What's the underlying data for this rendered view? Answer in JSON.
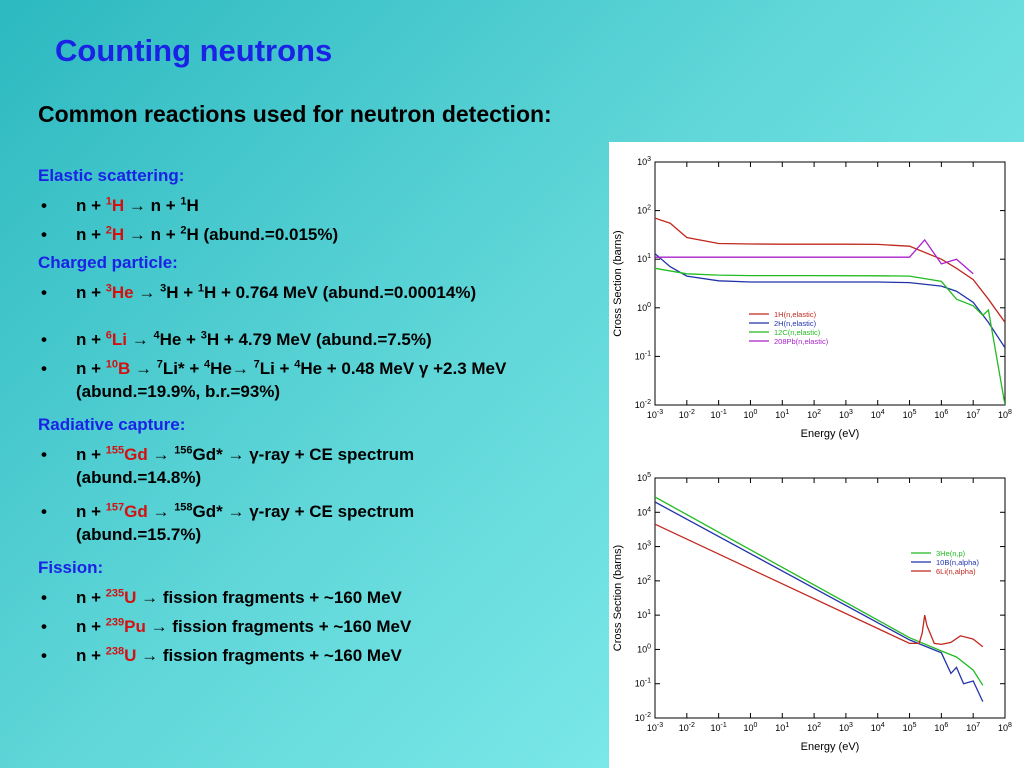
{
  "slide": {
    "title": "Counting neutrons",
    "subtitle": "Common reactions used for neutron detection:"
  },
  "sections": [
    {
      "heading": "Elastic scattering:",
      "items": [
        {
          "pre": "n + ",
          "sup": "1",
          "iso": "H",
          "post": " → n + ",
          "sup2": "1",
          "rest": "H"
        },
        {
          "pre": "n + ",
          "sup": "2",
          "iso": "H",
          "post": " → n + ",
          "sup2": "2",
          "rest": "H (abund.=0.015%)"
        }
      ]
    },
    {
      "heading": "Charged particle:",
      "items": [
        {
          "pre": "n + ",
          "sup": "3",
          "iso": "He",
          "post": " →  ",
          "sup2": "3",
          "rest": "H + ",
          "sup3": "1",
          "rest2": "H + 0.764 MeV (abund.=0.00014%)"
        },
        {
          "pre": "n +  ",
          "sup": "6",
          "iso": "Li",
          "post": "  → ",
          "sup2": "4",
          "rest": "He + ",
          "sup3": "3",
          "rest2": "H + 4.79 MeV (abund.=7.5%)"
        },
        {
          "pre": "n +  ",
          "sup": "10",
          "iso": "B",
          "post": " →  ",
          "sup2": "7",
          "rest": "Li* + ",
          "sup3": "4",
          "rest2": "He→ ",
          "sup4": "7",
          "rest3": "Li + ",
          "sup5": "4",
          "rest4": "He + 0.48 MeV γ +2.3 MeV",
          "line2": "(abund.=19.9%, b.r.=93%)"
        }
      ]
    },
    {
      "heading": "Radiative capture:",
      "items": [
        {
          "pre": "n + ",
          "sup": "155",
          "iso": "Gd",
          "post": " → ",
          "sup2": "156",
          "rest": "Gd* → γ-ray + CE spectrum",
          "line2": "(abund.=14.8%)"
        },
        {
          "pre": "n + ",
          "sup": "157",
          "iso": "Gd",
          "post": " → ",
          "sup2": "158",
          "rest": "Gd* → γ-ray + CE spectrum",
          "line2": "(abund.=15.7%)"
        }
      ]
    },
    {
      "heading": "Fission:",
      "items": [
        {
          "pre": "n + ",
          "sup": "235",
          "iso": "U",
          "post": " → fission fragments + ~160 MeV"
        },
        {
          "pre": "n + ",
          "sup": "239",
          "iso": "Pu",
          "post": " → fission fragments + ~160 MeV"
        },
        {
          "pre": "n + ",
          "sup": "238",
          "iso": "U",
          "post": " → fission fragments + ~160 MeV"
        }
      ]
    }
  ],
  "bullet": "•",
  "colors": {
    "title": "#1a22e6",
    "isotope": "#d41010",
    "section": "#1a22e6"
  },
  "chart_data": [
    {
      "type": "line",
      "xlabel": "Energy (eV)",
      "ylabel": "Cross Section (barns)",
      "xscale": "log",
      "yscale": "log",
      "xlim": [
        0.001,
        100000000
      ],
      "ylim": [
        0.01,
        1000
      ],
      "xticks": [
        "10-3",
        "10-2",
        "10-1",
        "100",
        "101",
        "102",
        "103",
        "104",
        "105",
        "106",
        "107",
        "108"
      ],
      "yticks": [
        "10-2",
        "10-1",
        "100",
        "101",
        "102",
        "103"
      ],
      "legend_position": "center-right",
      "series": [
        {
          "name": "1H(n,elastic)",
          "color": "#c0281e",
          "x": [
            0.001,
            0.003,
            0.01,
            0.1,
            1,
            10,
            1000,
            10000,
            100000,
            1000000,
            3000000,
            10000000,
            30000000,
            100000000
          ],
          "y": [
            70,
            55,
            28,
            21,
            20.5,
            20.4,
            20.4,
            20.2,
            18.5,
            10,
            6.5,
            3.8,
            1.5,
            0.5
          ]
        },
        {
          "name": "2H(n,elastic)",
          "color": "#2233aa",
          "x": [
            0.001,
            0.003,
            0.01,
            0.1,
            1,
            100,
            10000,
            100000,
            1000000,
            3000000,
            10000000,
            30000000,
            100000000
          ],
          "y": [
            13,
            7,
            4.5,
            3.6,
            3.4,
            3.4,
            3.4,
            3.3,
            2.8,
            2.2,
            1.3,
            0.5,
            0.15
          ]
        },
        {
          "name": "12C(n,elastic)",
          "color": "#22bb22",
          "x": [
            0.001,
            0.01,
            0.1,
            1,
            100,
            10000,
            100000,
            1000000,
            3000000,
            10000000,
            20000000,
            30000000,
            100000000
          ],
          "y": [
            6.5,
            5,
            4.7,
            4.6,
            4.6,
            4.55,
            4.5,
            3.5,
            1.5,
            1.1,
            0.7,
            0.9,
            0.01
          ]
        },
        {
          "name": "208Pb(n,elastic)",
          "color": "#aa22cc",
          "x": [
            0.001,
            0.1,
            10,
            10000,
            100000,
            300000,
            1000000,
            3000000,
            10000000
          ],
          "y": [
            11,
            11,
            11,
            11,
            11,
            25,
            8,
            10,
            5
          ]
        }
      ]
    },
    {
      "type": "line",
      "xlabel": "Energy (eV)",
      "ylabel": "Cross Section (barns)",
      "xscale": "log",
      "yscale": "log",
      "xlim": [
        0.001,
        100000000
      ],
      "ylim": [
        0.01,
        100000
      ],
      "xticks": [
        "10-3",
        "10-2",
        "10-1",
        "100",
        "101",
        "102",
        "103",
        "104",
        "105",
        "106",
        "107",
        "108"
      ],
      "yticks": [
        "10-2",
        "10-1",
        "100",
        "101",
        "102",
        "103",
        "104",
        "105"
      ],
      "legend_position": "right",
      "series": [
        {
          "name": "3He(n,p)",
          "color": "#22bb22",
          "x": [
            0.001,
            100000,
            1000000,
            3000000,
            10000000,
            20000000
          ],
          "y": [
            28000,
            2.2,
            0.9,
            0.6,
            0.25,
            0.09
          ]
        },
        {
          "name": "10B(n,alpha)",
          "color": "#2233aa",
          "x": [
            0.001,
            100000,
            1000000,
            2000000,
            3000000,
            5000000,
            10000000,
            20000000
          ],
          "y": [
            20000,
            1.9,
            0.8,
            0.2,
            0.3,
            0.1,
            0.12,
            0.03
          ]
        },
        {
          "name": "6Li(n,alpha)",
          "color": "#c0281e",
          "x": [
            0.001,
            100000,
            200000,
            250000,
            300000,
            350000,
            600000,
            1000000,
            2000000,
            4000000,
            10000000,
            20000000
          ],
          "y": [
            4500,
            1.5,
            1.5,
            3,
            10,
            5,
            1.5,
            1.4,
            1.6,
            2.5,
            2,
            1.2
          ]
        }
      ]
    }
  ]
}
